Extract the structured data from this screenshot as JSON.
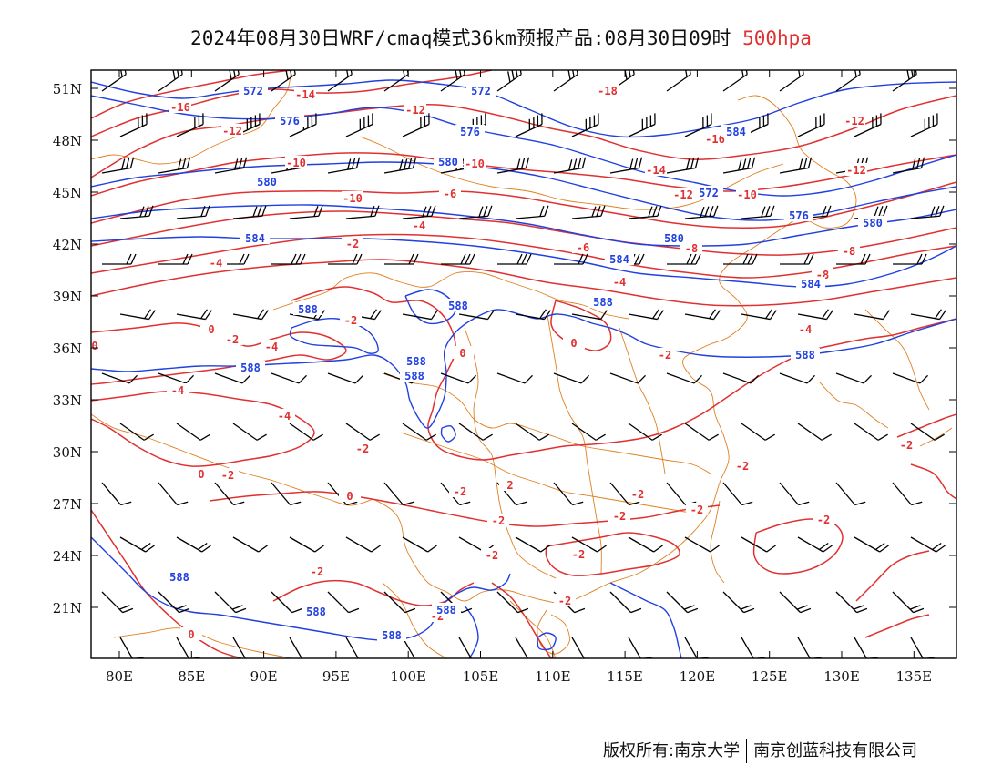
{
  "title": {
    "main": "2024年08月30日WRF/cmaq模式36km预报产品:08月30日09时",
    "level": "500hpa"
  },
  "footer": {
    "left": "版权所有:南京大学",
    "right": "南京创蓝科技有限公司"
  },
  "colors": {
    "height": "#2040e0",
    "temperature": "#e03030",
    "boundary": "#e08020",
    "barb": "#000000"
  },
  "axes": {
    "lat_labels": [
      "51N",
      "48N",
      "45N",
      "42N",
      "39N",
      "36N",
      "33N",
      "30N",
      "27N",
      "24N",
      "21N"
    ],
    "lon_labels": [
      "80E",
      "85E",
      "90E",
      "95E",
      "100E",
      "105E",
      "110E",
      "115E",
      "120E",
      "125E",
      "130E",
      "135E"
    ]
  },
  "height_labels": [
    "572",
    "572",
    "576",
    "576",
    "580",
    "580",
    "584",
    "584",
    "572",
    "580",
    "584",
    "584",
    "576",
    "580",
    "588",
    "588",
    "588",
    "588",
    "588",
    "588",
    "588",
    "588",
    "588",
    "588",
    "588"
  ],
  "temperature_labels": [
    "-16",
    "-14",
    "-12",
    "-12",
    "-10",
    "-10",
    "-18",
    "-16",
    "-14",
    "-12",
    "-12",
    "-10",
    "-12",
    "-10",
    "-6",
    "-8",
    "-4",
    "-2",
    "-4",
    "-4",
    "-8",
    "-8",
    "-6",
    "-4",
    "-2",
    "0",
    "0",
    "0",
    "-2",
    "-4",
    "-4",
    "0",
    "-2",
    "-4",
    "-2",
    "0",
    "-2",
    "2",
    "0",
    "-2",
    "-2",
    "-2",
    "-2",
    "-2",
    "-2",
    "-2",
    "-2",
    "0",
    "-2",
    "-2",
    "-2",
    "-2",
    "-2"
  ]
}
